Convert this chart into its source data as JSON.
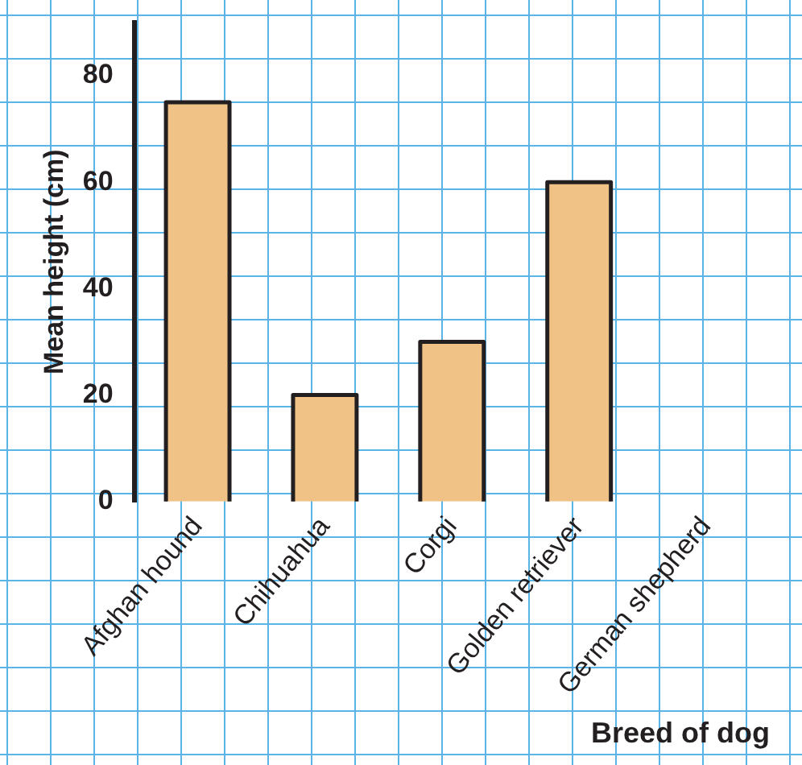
{
  "chart_data": {
    "type": "bar",
    "xlabel": "Breed of dog",
    "ylabel": "Mean height (cm)",
    "categories": [
      "Afghan hound",
      "Chihuahua",
      "Corgi",
      "Golden retriever",
      "German shepherd"
    ],
    "values": [
      75,
      20,
      30,
      60,
      null
    ],
    "color": "#f0c285",
    "ylim": [
      0,
      90
    ],
    "yticks": [
      0,
      20,
      40,
      60,
      80
    ],
    "grid": false
  }
}
